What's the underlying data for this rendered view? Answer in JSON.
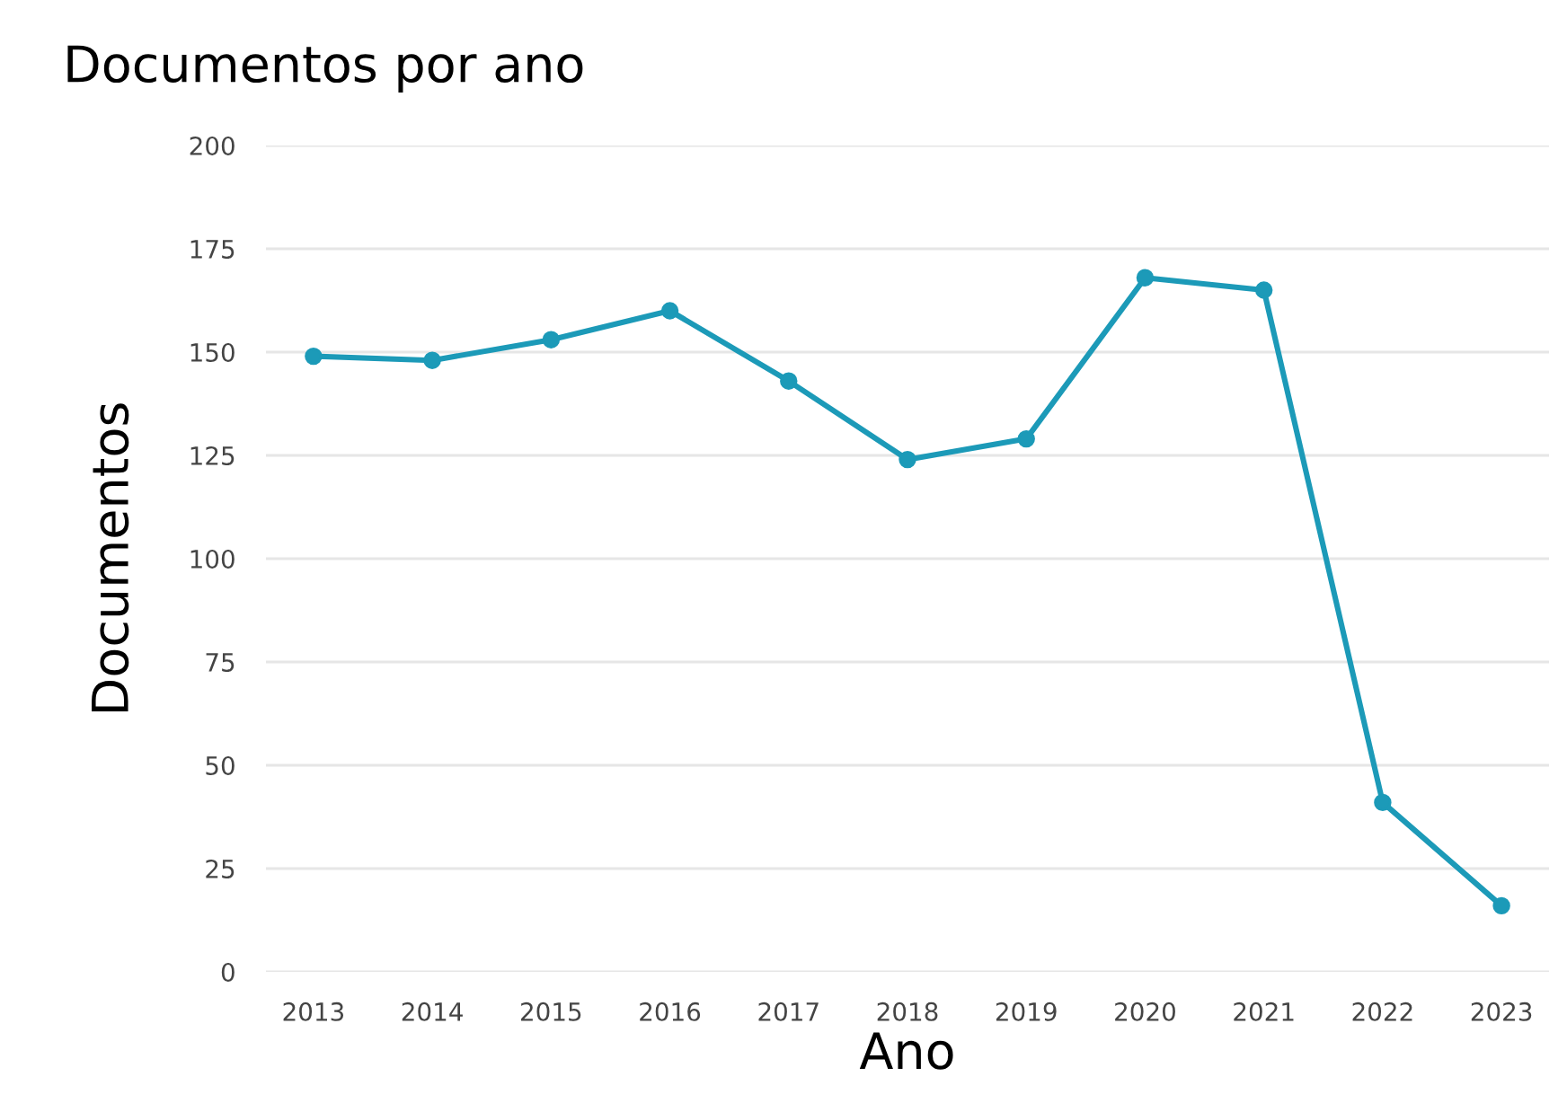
{
  "chart_data": {
    "type": "line",
    "title": "Documentos por ano",
    "xlabel": "Ano",
    "ylabel": "Documentos",
    "categories": [
      "2013",
      "2014",
      "2015",
      "2016",
      "2017",
      "2018",
      "2019",
      "2020",
      "2021",
      "2022",
      "2023"
    ],
    "series": [
      {
        "color": "#1c9ab8",
        "values": [
          149,
          148,
          153,
          160,
          143,
          124,
          129,
          168,
          165,
          41,
          16
        ]
      }
    ],
    "ylim": [
      0,
      200
    ],
    "yticks": [
      0,
      25,
      50,
      75,
      100,
      125,
      150,
      175,
      200
    ],
    "grid": "y",
    "marker": "circle",
    "line_style": "solid"
  }
}
